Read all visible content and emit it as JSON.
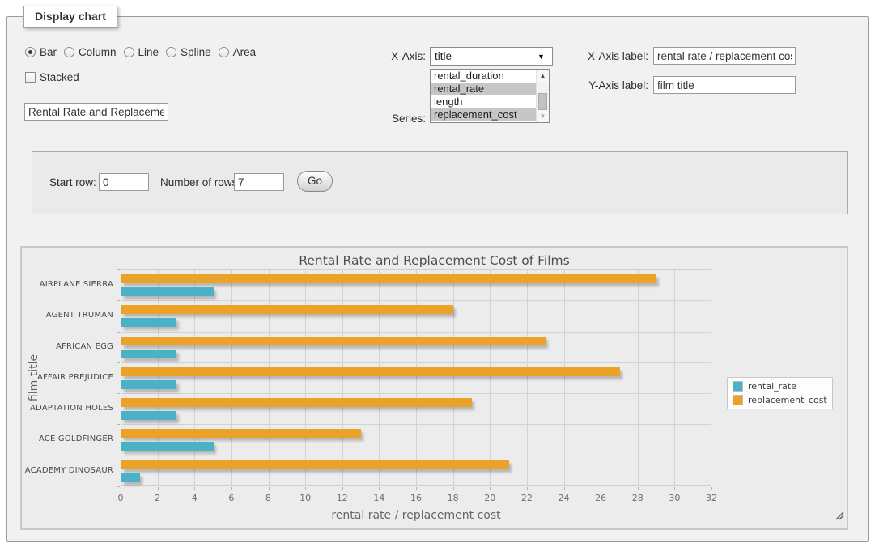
{
  "fieldset": {
    "legend": "Display chart"
  },
  "chart_type": {
    "options": [
      {
        "label": "Bar",
        "selected": true
      },
      {
        "label": "Column",
        "selected": false
      },
      {
        "label": "Line",
        "selected": false
      },
      {
        "label": "Spline",
        "selected": false
      },
      {
        "label": "Area",
        "selected": false
      }
    ]
  },
  "stacked": {
    "label": "Stacked",
    "checked": false
  },
  "title_input": {
    "value": "Rental Rate and Replacement Cost of Films"
  },
  "x_axis_select": {
    "label": "X-Axis:",
    "value": "title"
  },
  "series_select": {
    "label": "Series:",
    "options": [
      {
        "label": "rental_duration",
        "selected": false
      },
      {
        "label": "rental_rate",
        "selected": true
      },
      {
        "label": "length",
        "selected": false
      },
      {
        "label": "replacement_cost",
        "selected": true
      }
    ],
    "scroll_up_glyph": "▲",
    "scroll_down_glyph": "▼"
  },
  "x_axis_label": {
    "label": "X-Axis label:",
    "value": "rental rate / replacement cost"
  },
  "y_axis_label": {
    "label": "Y-Axis label:",
    "value": "film title"
  },
  "row_controls": {
    "start_row_label": "Start row:",
    "start_row_value": "0",
    "num_rows_label": "Number of rows:",
    "num_rows_value": "7",
    "go_label": "Go"
  },
  "chart_data": {
    "type": "bar",
    "orientation": "horizontal",
    "title": "Rental Rate and Replacement Cost of Films",
    "xlabel": "rental rate / replacement cost",
    "ylabel": "film title",
    "categories": [
      "AIRPLANE SIERRA",
      "AGENT TRUMAN",
      "AFRICAN EGG",
      "AFFAIR PREJUDICE",
      "ADAPTATION HOLES",
      "ACE GOLDFINGER",
      "ACADEMY DINOSAUR"
    ],
    "series": [
      {
        "name": "rental_rate",
        "color": "#4bb2c5",
        "values": [
          4.99,
          2.99,
          2.99,
          2.99,
          2.99,
          4.99,
          0.99
        ]
      },
      {
        "name": "replacement_cost",
        "color": "#EAA228",
        "values": [
          28.99,
          17.99,
          22.99,
          26.99,
          18.99,
          12.99,
          20.99
        ]
      }
    ],
    "xlim": [
      0,
      32
    ],
    "xtick_step": 2,
    "grid": true,
    "legend_position": "right",
    "plot_bg": "#ececec"
  }
}
